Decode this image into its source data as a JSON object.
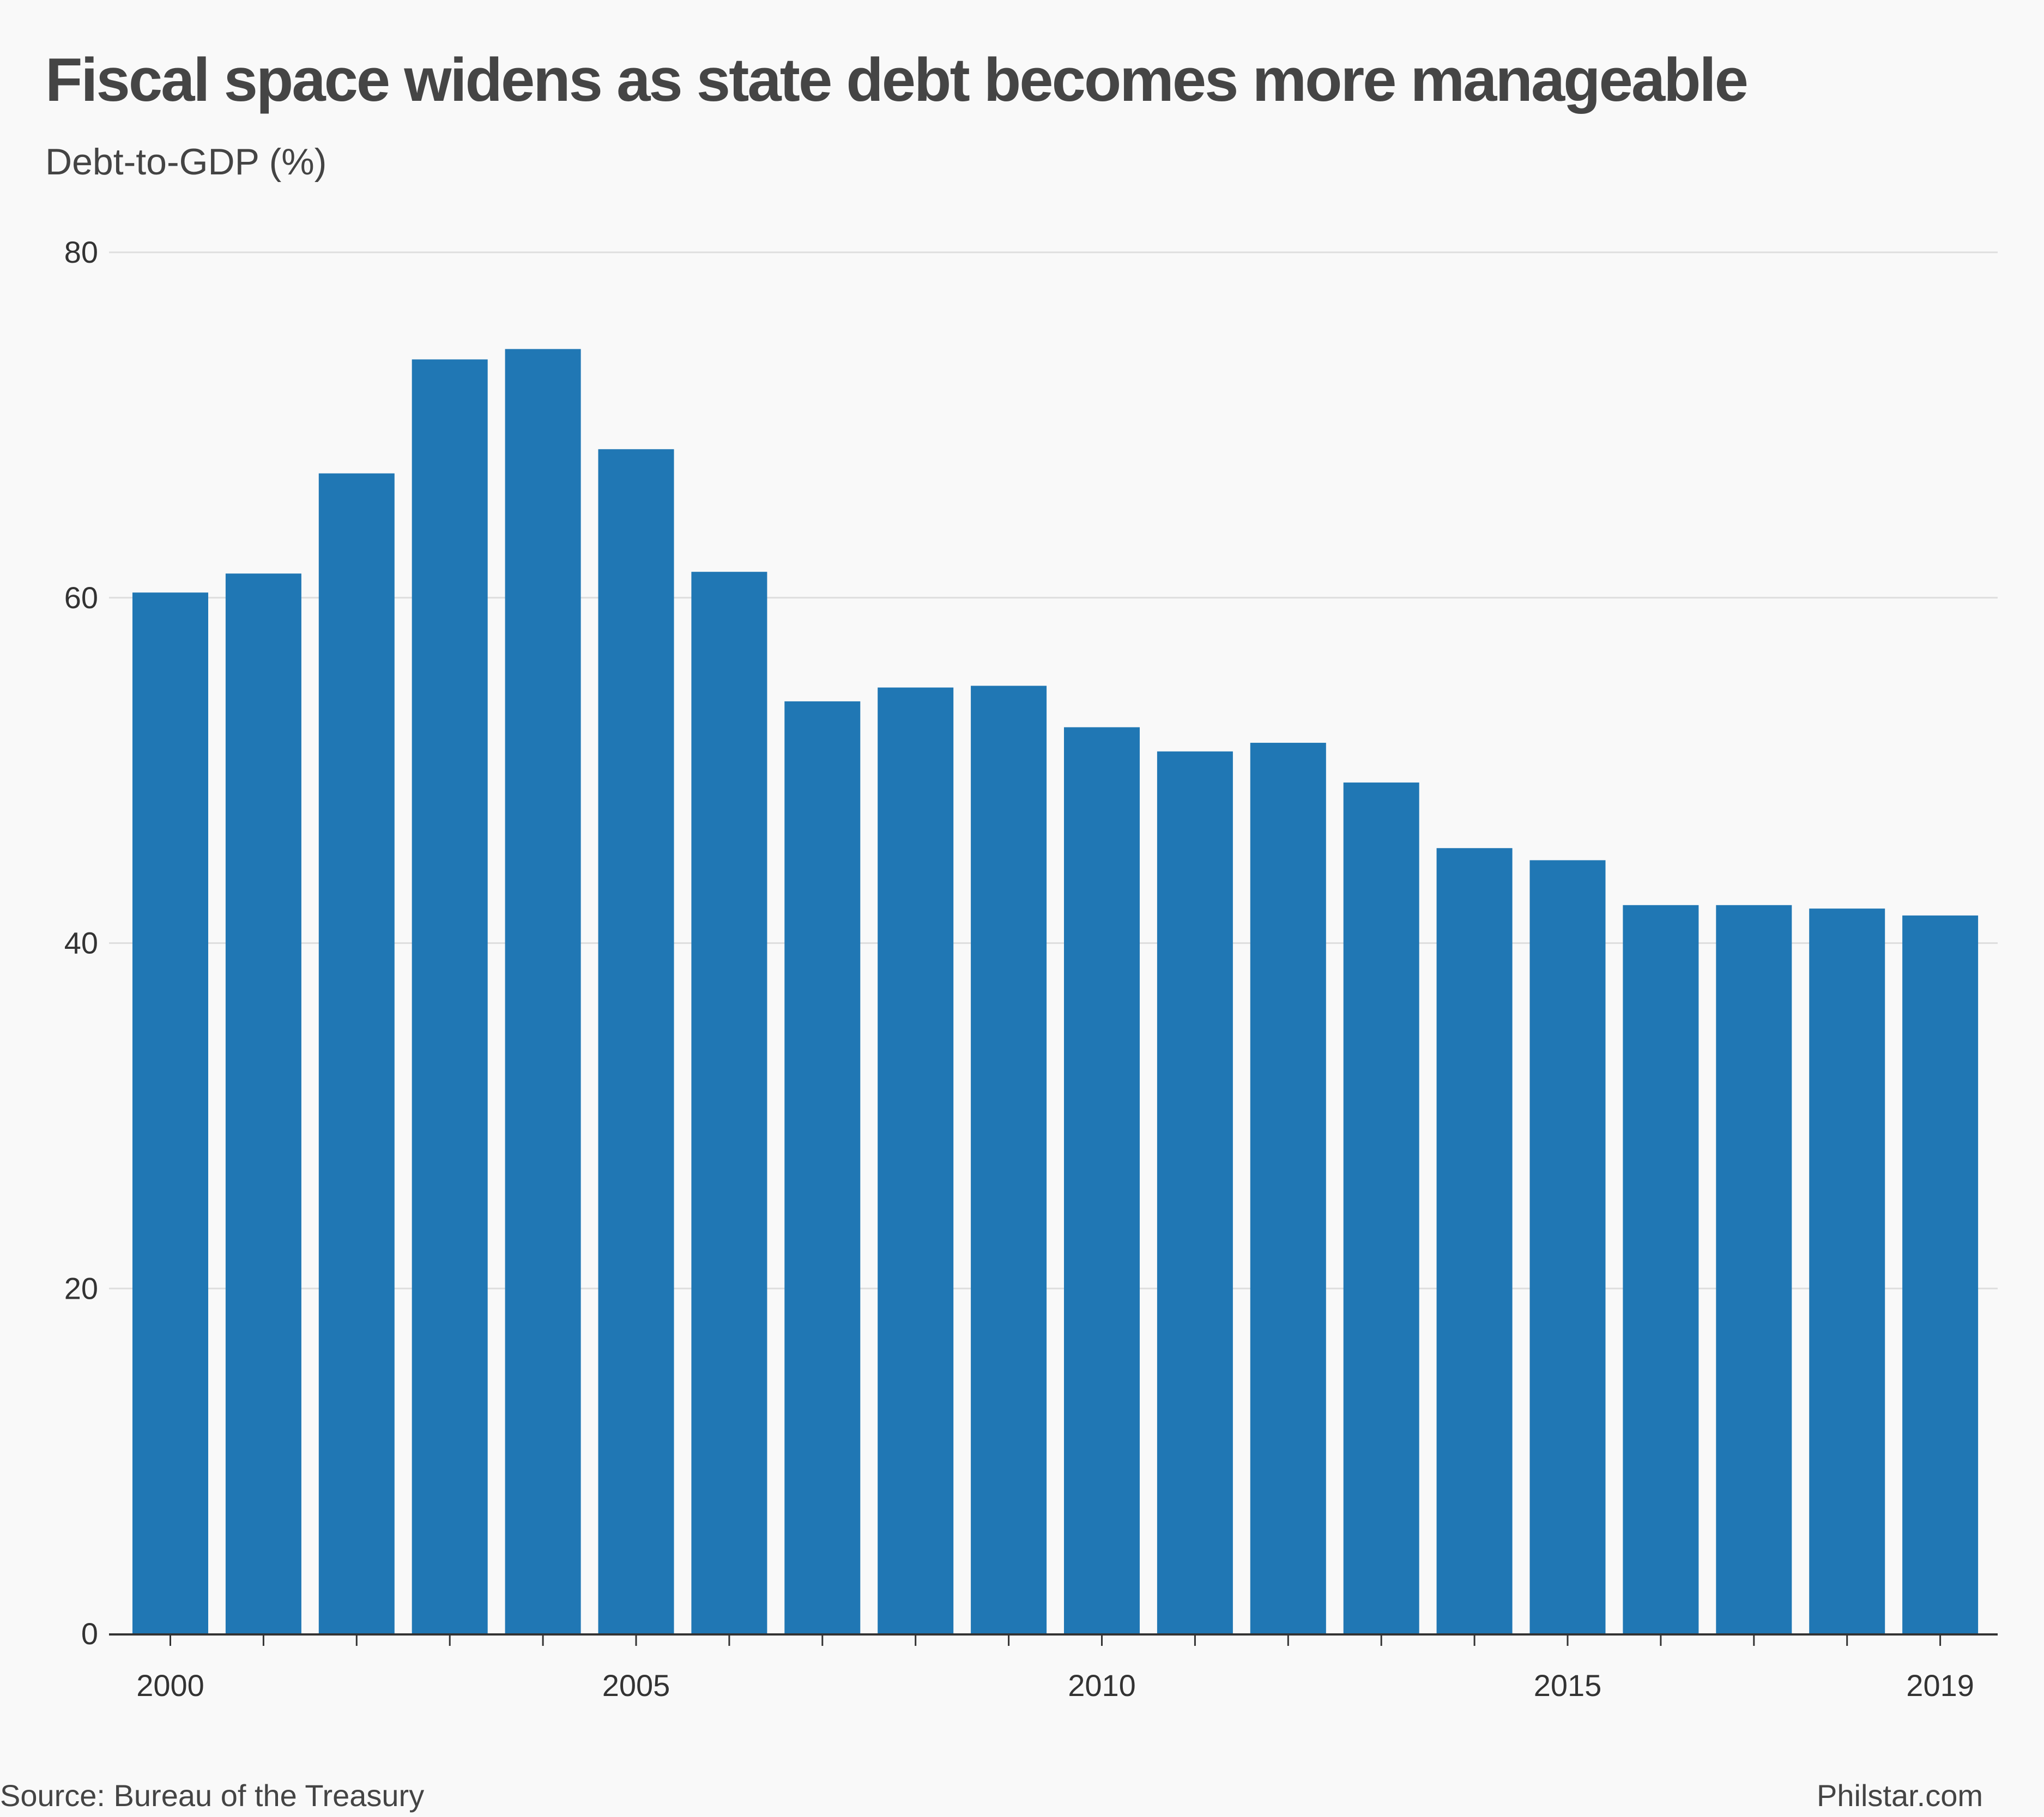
{
  "chart_data": {
    "type": "bar",
    "title": "Fiscal space widens as state debt becomes more manageable",
    "ylabel": "Debt-to-GDP (%)",
    "xlabel": "",
    "categories": [
      "2000",
      "2001",
      "2002",
      "2003",
      "2004",
      "2005",
      "2006",
      "2007",
      "2008",
      "2009",
      "2010",
      "2011",
      "2012",
      "2013",
      "2014",
      "2015",
      "2016",
      "2017",
      "2018",
      "2019"
    ],
    "values": [
      60.3,
      61.4,
      67.2,
      73.8,
      74.4,
      68.6,
      61.5,
      54.0,
      54.8,
      54.9,
      52.5,
      51.1,
      51.6,
      49.3,
      45.5,
      44.8,
      42.2,
      42.2,
      42.0,
      41.6
    ],
    "ylim": [
      0,
      80
    ],
    "yticks": [
      "0",
      "20",
      "40",
      "60",
      "80"
    ],
    "xtick_labels": [
      "2000",
      "2005",
      "2010",
      "2015",
      "2019"
    ],
    "bar_color": "#2077b4",
    "grid": true,
    "legend": "none"
  },
  "footer": {
    "source": "Source: Bureau of the Treasury",
    "credit": "Philstar.com"
  }
}
